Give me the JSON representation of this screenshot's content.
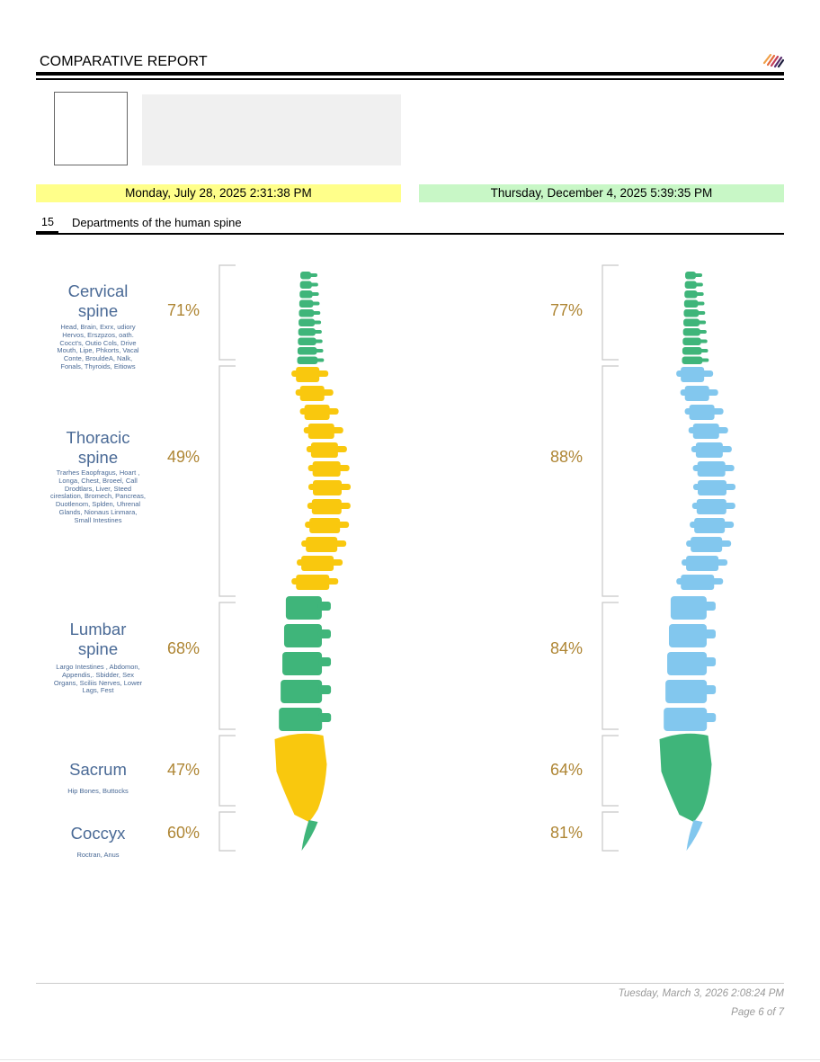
{
  "header": {
    "title": "COMPARATIVE REPORT",
    "logo_icon": "stripes-logo-icon"
  },
  "dates": {
    "left": "Monday, July 28, 2025 2:31:38 PM",
    "left_color": "#ffff8a",
    "right": "Thursday, December 4, 2025 5:39:35 PM",
    "right_color": "#c8f7c6"
  },
  "section": {
    "number": "15",
    "title": "Departments of the human spine"
  },
  "regions": [
    {
      "title_line1": "Cervical",
      "title_line2": "spine",
      "desc_lines": [
        "Head, Brain,  Exrx, udiory",
        "Hervos, Erszpzos, oath.",
        "Cocct's, Outio Cols, Drive",
        "Mouth, Lipe, Phkorts, Vacal",
        "Conte, BrouldeA, Nalk,",
        "Fonals, Thyroids, Eitiows"
      ],
      "left_pct": "71%",
      "right_pct": "77%"
    },
    {
      "title_line1": "Thoracic",
      "title_line2": "spine",
      "desc_lines": [
        "Trarhes  Eaopfragus, Hoart ,",
        "Longa, Chest, Broeel, Call",
        "Drodtlars, Liver, Steed",
        "cireslation, Bromech, Pancreas,",
        "Duotlenom, Splden, Uhrenal",
        "Glands,  Nionaus  Linmara,",
        "Small Intestines"
      ],
      "left_pct": "49%",
      "right_pct": "88%"
    },
    {
      "title_line1": "Lumbar",
      "title_line2": "spine",
      "desc_lines": [
        "Largo Intestines , Abdomon,",
        "Appendis,. Sbidder, Sex",
        "Organs,  Sciliis Nerves,  Lower",
        "Lags, Fest"
      ],
      "left_pct": "68%",
      "right_pct": "84%"
    },
    {
      "title_line1": "Sacrum",
      "title_line2": "",
      "desc_lines": [
        "Hip Bones, Buttocks"
      ],
      "left_pct": "47%",
      "right_pct": "64%"
    },
    {
      "title_line1": "Coccyx",
      "title_line2": "",
      "desc_lines": [
        "Roctran, Anus"
      ],
      "left_pct": "60%",
      "right_pct": "81%"
    }
  ],
  "spine_colors": {
    "green": "#3fb57a",
    "yellow": "#f9c80e",
    "blue": "#82c7ee"
  },
  "footer": {
    "date": "Tuesday, March 3, 2026 2:08:24 PM",
    "page": "Page 6 of 7"
  }
}
